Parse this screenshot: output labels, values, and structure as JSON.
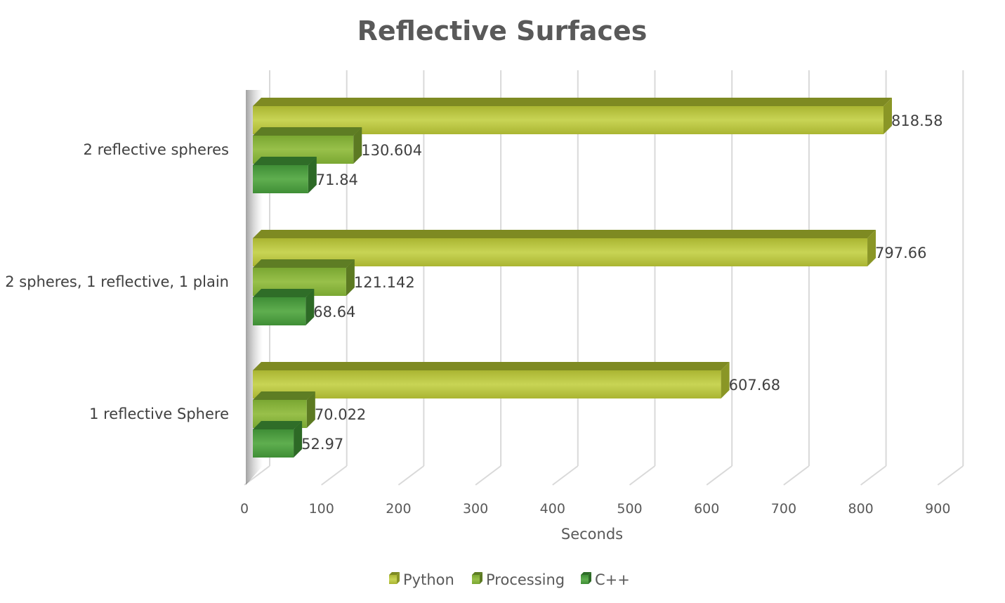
{
  "chart_data": {
    "type": "bar",
    "orientation": "horizontal",
    "title": "Reflective Surfaces",
    "xlabel": "Seconds",
    "ylabel": "",
    "xlim": [
      0,
      900
    ],
    "xticks": [
      0,
      100,
      200,
      300,
      400,
      500,
      600,
      700,
      800,
      900
    ],
    "categories": [
      "1 reflective Sphere",
      "2 spheres, 1 reflective, 1 plain",
      "2 reflective spheres"
    ],
    "series": [
      {
        "name": "Python",
        "values": [
          607.68,
          797.66,
          818.58
        ],
        "labels": [
          "607.68",
          "797.66",
          "818.58"
        ],
        "color": "#b5c33a"
      },
      {
        "name": "Processing",
        "values": [
          70.022,
          121.142,
          130.604
        ],
        "labels": [
          "70.022",
          "121.142",
          "130.604"
        ],
        "color": "#8cb63c"
      },
      {
        "name": "C++",
        "values": [
          52.97,
          68.64,
          71.84
        ],
        "labels": [
          "52.97",
          "68.64",
          "71.84"
        ],
        "color": "#4e9e40"
      }
    ],
    "grid": true,
    "legend": "bottom",
    "style": "3d-bars"
  }
}
